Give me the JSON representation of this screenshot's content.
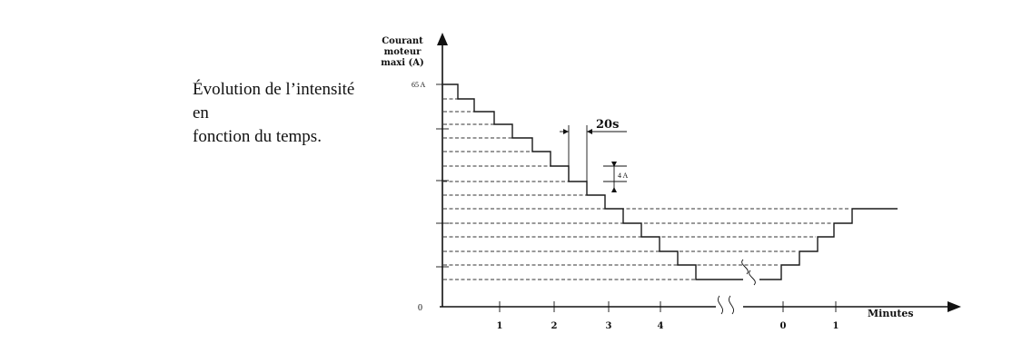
{
  "caption": {
    "line1": "Évolution de l’intensité en",
    "line2": "fonction du temps."
  },
  "diagram": {
    "y_axis_title": [
      "Courant",
      "moteur",
      "maxi (A)"
    ],
    "y_top_label": "65 A",
    "origin_label": "0",
    "x_axis_title": "Minutes",
    "x_ticks_left": [
      "1",
      "2",
      "3",
      "4"
    ],
    "x_ticks_right": [
      "0",
      "1"
    ],
    "time_step_label": "20s",
    "current_step_label": "4 A",
    "break_marks": [
      "SS",
      "SS"
    ]
  }
}
